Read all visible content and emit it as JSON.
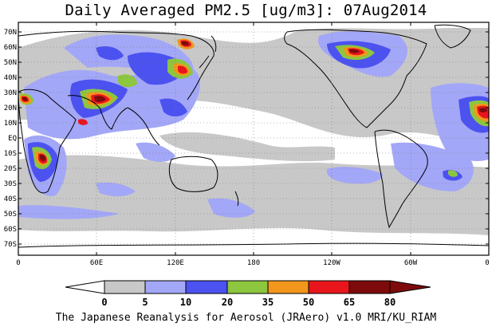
{
  "title": "Daily Averaged PM2.5 [ug/m3]: 07Aug2014",
  "caption": "The Japanese Reanalysis for Aerosol (JRAero) v1.0 MRI/KU_RIAM",
  "map": {
    "projection": "equirectangular",
    "center_longitude": 180,
    "grid": "dotted",
    "lon_ticks": [
      "0",
      "60E",
      "120E",
      "180",
      "120W",
      "60W",
      "0"
    ],
    "lat_ticks": [
      "70N",
      "60N",
      "50N",
      "40N",
      "30N",
      "20N",
      "10N",
      "EQ",
      "10S",
      "20S",
      "30S",
      "40S",
      "50S",
      "60S",
      "70S"
    ]
  },
  "colorbar": {
    "levels": [
      "0",
      "5",
      "10",
      "20",
      "35",
      "50",
      "65",
      "80"
    ],
    "colors": [
      "#ffffff",
      "#c8c8c8",
      "#a3a7f7",
      "#4b52f0",
      "#8dc63f",
      "#f3961c",
      "#e8161c",
      "#7d0b0b"
    ]
  }
}
